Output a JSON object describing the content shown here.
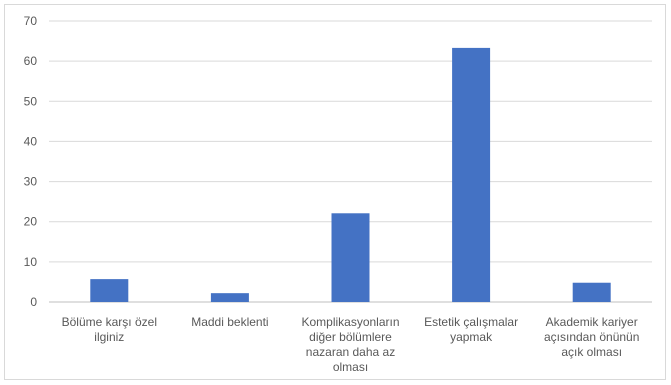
{
  "chart_data": {
    "type": "bar",
    "title": "",
    "xlabel": "",
    "ylabel": "",
    "categories": [
      [
        "Bölüme karşı özel",
        "ilginiz"
      ],
      [
        "Maddi beklenti"
      ],
      [
        "Komplikasyonların",
        "diğer bölümlere",
        "nazaran daha az",
        "olması"
      ],
      [
        "Estetik çalışmalar",
        "yapmak"
      ],
      [
        "Akademik kariyer",
        "açısından önünün",
        "açık olması"
      ]
    ],
    "series": [
      {
        "values": [
          5.7,
          2.2,
          22.1,
          63.3,
          4.8
        ]
      }
    ],
    "ylim": [
      0,
      70
    ],
    "yticks": [
      0,
      10,
      20,
      30,
      40,
      50,
      60,
      70
    ],
    "grid": true,
    "legend": "none",
    "colors": {
      "bar": "#4472C4",
      "grid": "#d9d9d9",
      "axis": "#bfbfbf",
      "text": "#595959"
    }
  }
}
